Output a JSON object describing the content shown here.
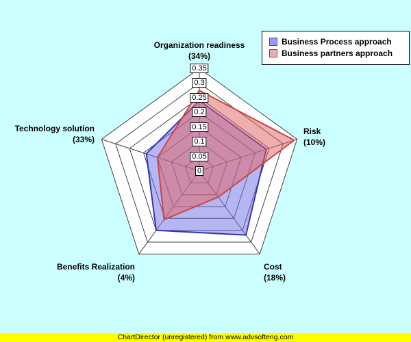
{
  "page": {
    "background": "#ccffff"
  },
  "chart_data": {
    "type": "radar",
    "rmax": 0.35,
    "tick_step": 0.05,
    "tick_labels": [
      "0",
      "0.05",
      "0.1",
      "0.15",
      "0.2",
      "0.25",
      "0.3",
      "0.35"
    ],
    "grid_on": true,
    "grid_color": "#404040",
    "plot_bg": "#ffffff",
    "legend_position": "top-right",
    "axes": [
      {
        "label": "Organization readiness",
        "weight": "(34%)"
      },
      {
        "label": "Risk",
        "weight": "(10%)"
      },
      {
        "label": "Cost",
        "weight": "(18%)"
      },
      {
        "label": "Benefits Realization",
        "weight": "(4%)"
      },
      {
        "label": "Technology solution",
        "weight": "(33%)"
      }
    ],
    "series": [
      {
        "name": "Business Process approach",
        "values": [
          0.24,
          0.24,
          0.27,
          0.25,
          0.19
        ],
        "fill": "rgba(110,110,230,0.5)",
        "stroke": "#3333bb",
        "legend_color": "#9999ff"
      },
      {
        "name": "Business partners approach",
        "values": [
          0.275,
          0.34,
          0.11,
          0.205,
          0.15
        ],
        "fill": "rgba(225,95,95,0.5)",
        "stroke": "#cc4444",
        "legend_color": "#f2aaaa"
      }
    ]
  },
  "footer": {
    "text": "ChartDirector (unregistered) from www.advsofteng.com",
    "background": "#ffff00"
  }
}
